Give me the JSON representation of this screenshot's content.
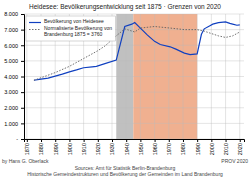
{
  "chart_data": {
    "type": "line",
    "title": "Heidesee: Bevölkerungsentwicklung seit 1875 · Grenzen von 2020",
    "xlim": [
      1868,
      2023
    ],
    "ylim": [
      0,
      8000
    ],
    "xticks": [
      1870,
      1880,
      1890,
      1900,
      1910,
      1920,
      1930,
      1940,
      1950,
      1960,
      1970,
      1980,
      1990,
      2000,
      2010,
      2020
    ],
    "yticks": [
      {
        "value": 0,
        "label": "-"
      },
      {
        "value": 1000,
        "label": "1.000"
      },
      {
        "value": 2000,
        "label": "2.000"
      },
      {
        "value": 3000,
        "label": "3.000"
      },
      {
        "value": 4000,
        "label": "4.000"
      },
      {
        "value": 5000,
        "label": "5.000"
      },
      {
        "value": 6000,
        "label": "6.000"
      },
      {
        "value": 7000,
        "label": "7.000"
      },
      {
        "value": 8000,
        "label": "8.000"
      }
    ],
    "grid": true,
    "legend": "upper left",
    "spans": [
      {
        "start": 1933,
        "end": 1945,
        "color": "#c0c0c0"
      },
      {
        "start": 1945,
        "end": 1990,
        "color": "#f0b090"
      }
    ],
    "series": [
      {
        "name": "Bevölkerung von Heidesee",
        "color": "#1040c0",
        "line_style": "solid",
        "x": [
          1875,
          1880,
          1885,
          1890,
          1895,
          1900,
          1905,
          1910,
          1916,
          1919,
          1925,
          1933,
          1939,
          1944,
          1946,
          1950,
          1955,
          1960,
          1964,
          1971,
          1975,
          1981,
          1985,
          1990,
          1993,
          1995,
          1999,
          2001,
          2005,
          2010,
          2013,
          2015,
          2018,
          2020
        ],
        "values": [
          3760,
          3830,
          3900,
          4020,
          4150,
          4300,
          4420,
          4560,
          4620,
          4650,
          4820,
          5050,
          7200,
          7350,
          7450,
          7100,
          6650,
          6250,
          6050,
          5900,
          5750,
          5500,
          5400,
          5450,
          6700,
          7050,
          7250,
          7350,
          7450,
          7500,
          7400,
          7350,
          7280,
          7300
        ]
      },
      {
        "name": "Normalisierte Bevölkerung von\nBrandenburg 1875 = 3760",
        "color": "#606060",
        "line_style": "dotted",
        "x": [
          1875,
          1880,
          1890,
          1900,
          1910,
          1920,
          1925,
          1930,
          1933,
          1939,
          1946,
          1950,
          1960,
          1971,
          1981,
          1990,
          1995,
          2000,
          2005,
          2010,
          2015,
          2020
        ],
        "values": [
          3760,
          3920,
          4250,
          4650,
          5150,
          5650,
          5950,
          6350,
          6600,
          7050,
          6850,
          7100,
          7200,
          7100,
          7000,
          7000,
          6900,
          6750,
          6600,
          6500,
          6600,
          6850
        ]
      }
    ],
    "annotations": [
      "Sources: Amt für Statistik Berlin-Brandenburg",
      "Historische Gemeindestrukturen und Bevölkerung der Gemeinden im Land Brandenburg",
      "by Hans G. Oberlack",
      "PROV 2020"
    ]
  }
}
